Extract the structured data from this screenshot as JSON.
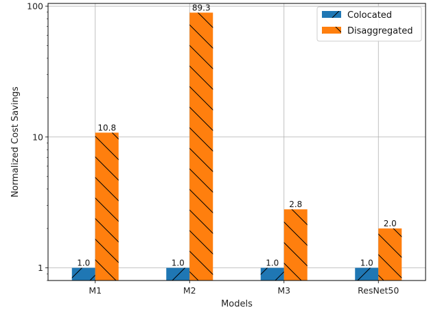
{
  "chart_data": {
    "type": "bar",
    "categories": [
      "M1",
      "M2",
      "M3",
      "ResNet50"
    ],
    "series": [
      {
        "name": "Colocated",
        "values": [
          1.0,
          1.0,
          1.0,
          1.0
        ],
        "labels": [
          "1.0",
          "1.0",
          "1.0",
          "1.0"
        ],
        "color": "#1f77b4",
        "hatch": "forward-slash"
      },
      {
        "name": "Disaggregated",
        "values": [
          10.8,
          89.3,
          2.8,
          2.0
        ],
        "labels": [
          "10.8",
          "89.3",
          "2.8",
          "2.0"
        ],
        "color": "#ff7f0e",
        "hatch": "back-slash"
      }
    ],
    "xlabel": "Models",
    "ylabel": "Normalized Cost Savings",
    "yscale": "log",
    "ylim": [
      0.8,
      105
    ],
    "yticks": [
      1,
      10,
      100
    ],
    "ytick_labels": [
      "1",
      "10",
      "100"
    ],
    "grid": true,
    "legend_position": "top-right"
  }
}
